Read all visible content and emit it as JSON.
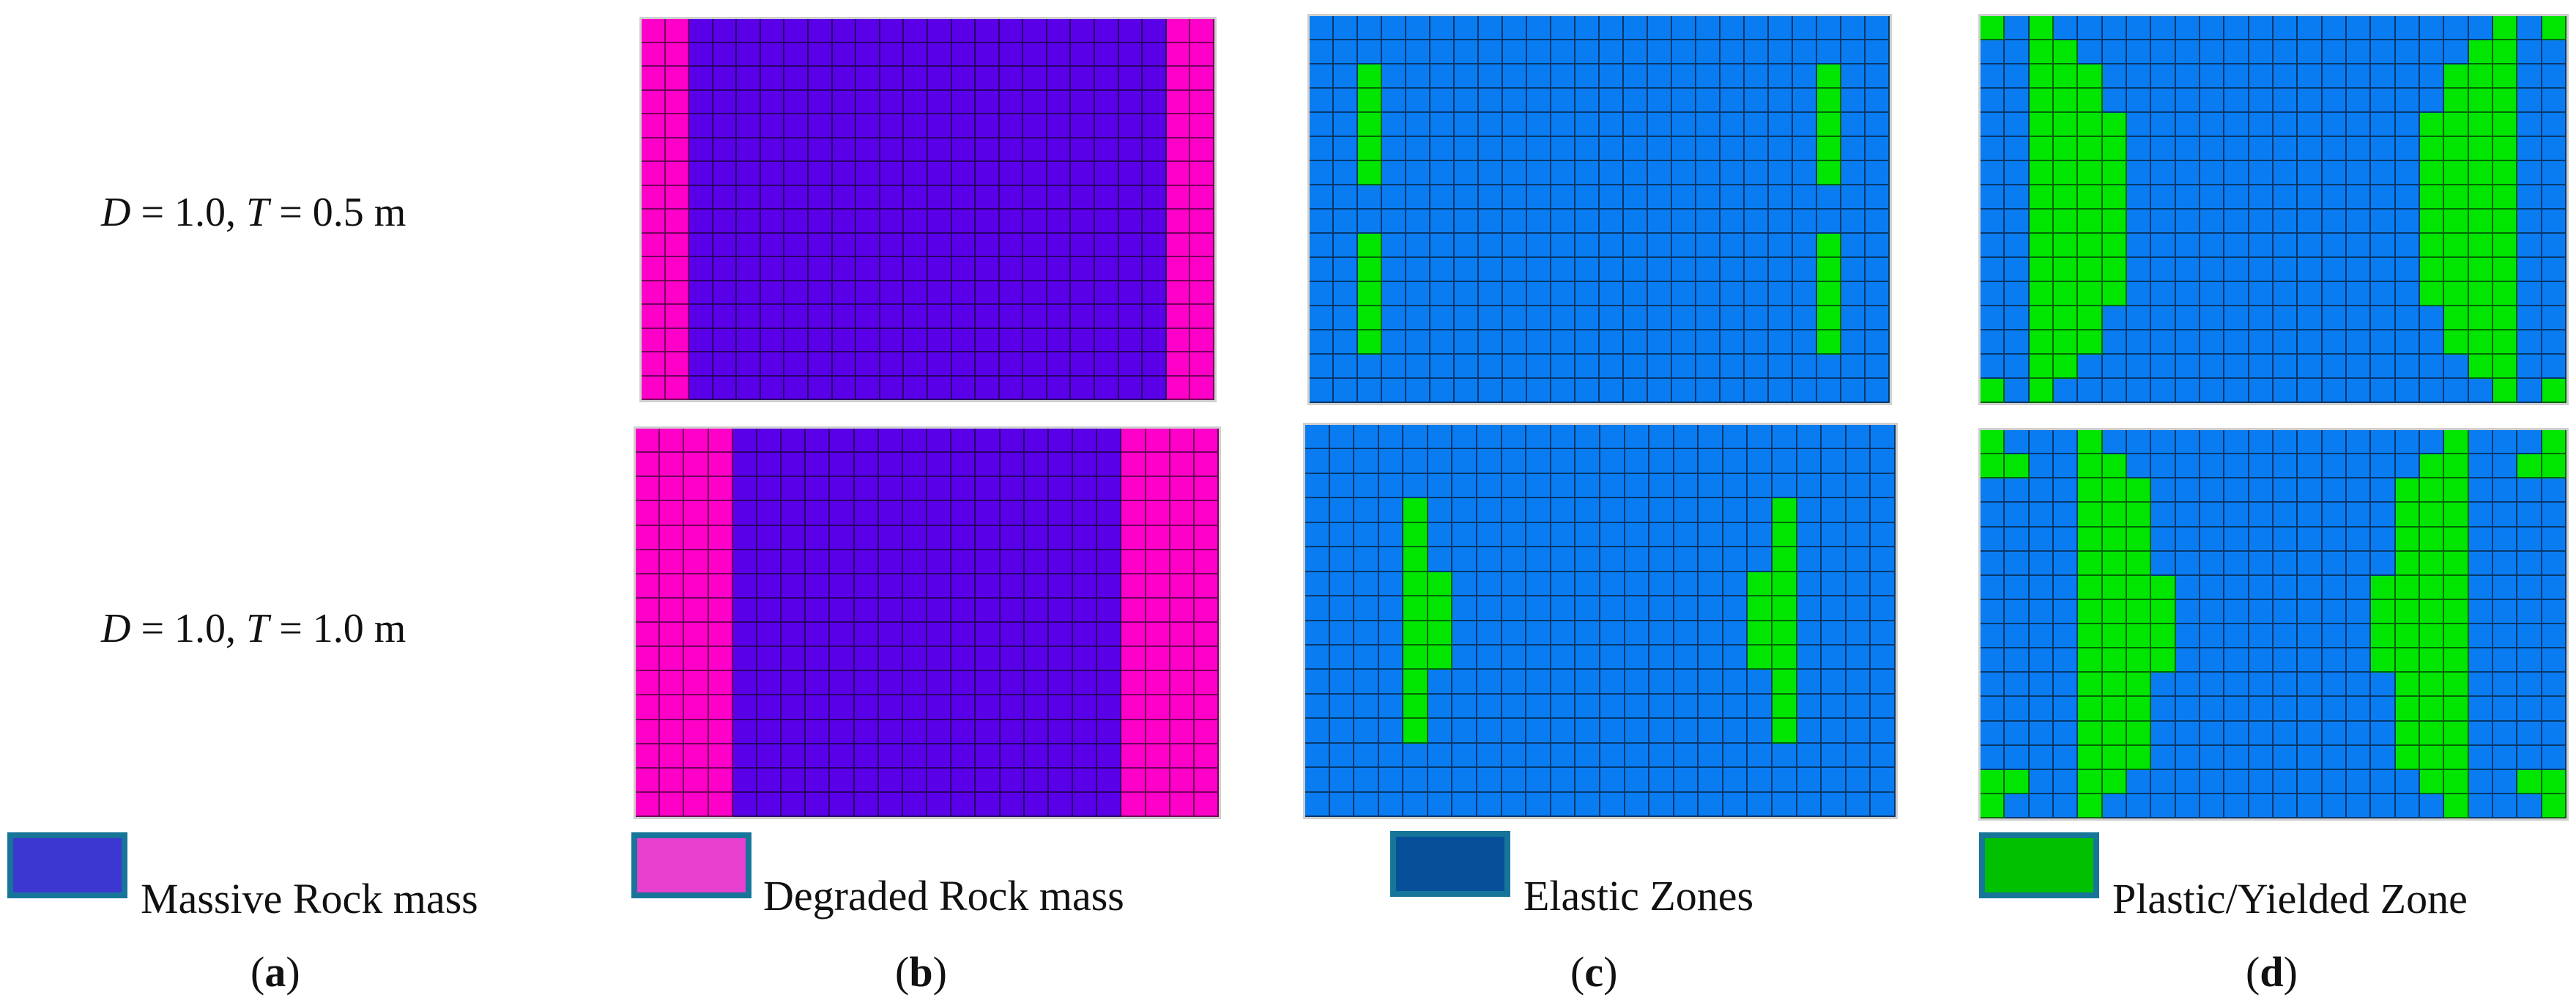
{
  "rows": [
    {
      "d_label": "D",
      "d_value": " = 1.0, ",
      "t_label": "T",
      "t_value": " = 0.5 m"
    },
    {
      "d_label": "D",
      "d_value": " = 1.0, ",
      "t_label": "T",
      "t_value": " = 1.0 m"
    }
  ],
  "legend": {
    "massive": "Massive Rock mass",
    "degraded": "Degraded Rock mass",
    "elastic": "Elastic Zones",
    "plastic": "Plastic/Yielded Zone"
  },
  "subfigures": {
    "a": {
      "open": "(",
      "letter": "a",
      "close": ")"
    },
    "b": {
      "open": "(",
      "letter": "b",
      "close": ")"
    },
    "c": {
      "open": "(",
      "letter": "c",
      "close": ")"
    },
    "d": {
      "open": "(",
      "letter": "d",
      "close": ")"
    }
  },
  "colors": {
    "massive_rock": "#5a00e8",
    "degraded_rock": "#ff00c8",
    "elastic_zone": "#0a7cf2",
    "plastic_zone": "#00e600",
    "legend_massive": "#3d37d2",
    "legend_degraded": "#e83fcf",
    "legend_elastic": "#06509a",
    "legend_plastic": "#00c000",
    "legend_border": "#17759a"
  },
  "panels": {
    "b_top": {
      "cols": 24,
      "rows": 16,
      "code": "b",
      "mask": "degraded-2"
    },
    "b_bottom": {
      "cols": 24,
      "rows": 16,
      "code": "b",
      "mask": "degraded-4"
    },
    "c_top": {
      "cols": 24,
      "rows": 16,
      "code": "c",
      "mask": "plastic-c-top"
    },
    "c_bottom": {
      "cols": 24,
      "rows": 16,
      "code": "c",
      "mask": "plastic-c-bottom"
    },
    "d_top": {
      "cols": 24,
      "rows": 16,
      "code": "d",
      "mask": "plastic-d-top"
    },
    "d_bottom": {
      "cols": 24,
      "rows": 16,
      "code": "d",
      "mask": "plastic-d-bottom"
    }
  }
}
